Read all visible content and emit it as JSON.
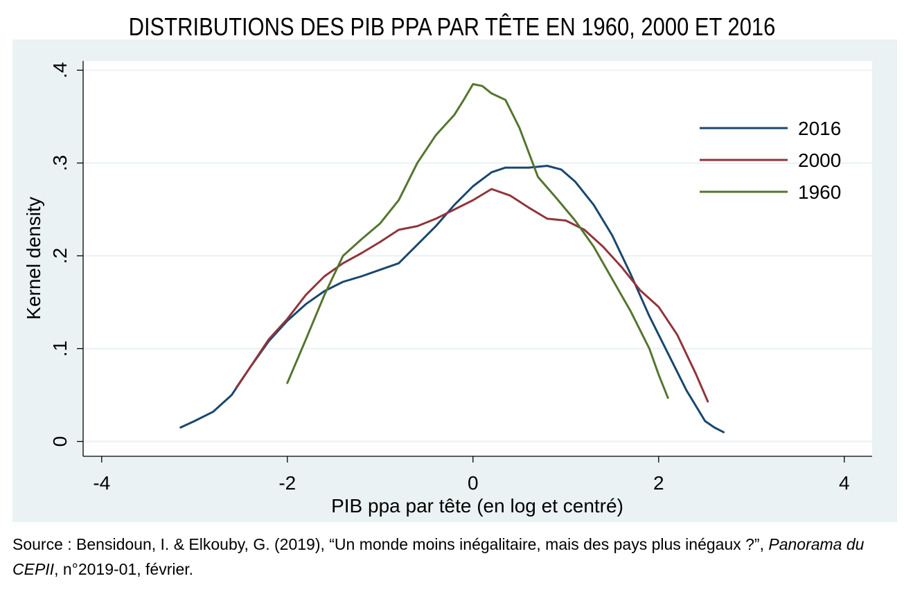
{
  "chart_data": {
    "type": "line",
    "title": "DISTRIBUTIONS DES PIB PPA PAR TÊTE EN 1960, 2000 ET 2016",
    "xlabel": "PIB ppa par tête (en log et centré)",
    "ylabel": "Kernel density",
    "xlim": [
      -4.2,
      4.3
    ],
    "ylim": [
      -0.016,
      0.41
    ],
    "xticks": [
      {
        "value": -4,
        "label": "-4"
      },
      {
        "value": -2,
        "label": "-2"
      },
      {
        "value": 0,
        "label": "0"
      },
      {
        "value": 2,
        "label": "2"
      },
      {
        "value": 4,
        "label": "4"
      }
    ],
    "yticks": [
      {
        "value": 0,
        "label": "0"
      },
      {
        "value": 0.1,
        "label": ".1"
      },
      {
        "value": 0.2,
        "label": ".2"
      },
      {
        "value": 0.3,
        "label": ".3"
      },
      {
        "value": 0.4,
        "label": ".4"
      }
    ],
    "grid": "horizontal",
    "legend_position": "top-right",
    "colors": {
      "outer_background": "#eaf2f3",
      "plot_background": "#ffffff",
      "gridline": "#eaf2f3"
    },
    "series": [
      {
        "name": "2016",
        "color": "#1a476f",
        "points": [
          [
            -3.15,
            0.015
          ],
          [
            -3.0,
            0.022
          ],
          [
            -2.8,
            0.032
          ],
          [
            -2.6,
            0.05
          ],
          [
            -2.4,
            0.08
          ],
          [
            -2.2,
            0.108
          ],
          [
            -2.0,
            0.13
          ],
          [
            -1.8,
            0.148
          ],
          [
            -1.6,
            0.162
          ],
          [
            -1.4,
            0.172
          ],
          [
            -1.2,
            0.178
          ],
          [
            -1.0,
            0.185
          ],
          [
            -0.8,
            0.192
          ],
          [
            -0.6,
            0.212
          ],
          [
            -0.4,
            0.232
          ],
          [
            -0.2,
            0.255
          ],
          [
            0.0,
            0.275
          ],
          [
            0.2,
            0.29
          ],
          [
            0.35,
            0.295
          ],
          [
            0.6,
            0.295
          ],
          [
            0.8,
            0.297
          ],
          [
            0.95,
            0.293
          ],
          [
            1.1,
            0.28
          ],
          [
            1.3,
            0.255
          ],
          [
            1.5,
            0.222
          ],
          [
            1.7,
            0.18
          ],
          [
            1.9,
            0.135
          ],
          [
            2.1,
            0.095
          ],
          [
            2.3,
            0.055
          ],
          [
            2.5,
            0.022
          ],
          [
            2.6,
            0.015
          ],
          [
            2.7,
            0.01
          ]
        ]
      },
      {
        "name": "2000",
        "color": "#90353b",
        "points": [
          [
            -2.55,
            0.058
          ],
          [
            -2.4,
            0.08
          ],
          [
            -2.2,
            0.11
          ],
          [
            -2.0,
            0.132
          ],
          [
            -1.8,
            0.158
          ],
          [
            -1.6,
            0.178
          ],
          [
            -1.4,
            0.192
          ],
          [
            -1.2,
            0.203
          ],
          [
            -1.0,
            0.215
          ],
          [
            -0.8,
            0.228
          ],
          [
            -0.6,
            0.232
          ],
          [
            -0.4,
            0.24
          ],
          [
            -0.2,
            0.25
          ],
          [
            0.0,
            0.26
          ],
          [
            0.2,
            0.272
          ],
          [
            0.4,
            0.265
          ],
          [
            0.6,
            0.252
          ],
          [
            0.8,
            0.24
          ],
          [
            1.0,
            0.238
          ],
          [
            1.2,
            0.228
          ],
          [
            1.4,
            0.21
          ],
          [
            1.6,
            0.188
          ],
          [
            1.8,
            0.163
          ],
          [
            2.0,
            0.145
          ],
          [
            2.2,
            0.115
          ],
          [
            2.4,
            0.073
          ],
          [
            2.53,
            0.043
          ]
        ]
      },
      {
        "name": "1960",
        "color": "#55752f",
        "points": [
          [
            -2.0,
            0.063
          ],
          [
            -1.8,
            0.11
          ],
          [
            -1.6,
            0.158
          ],
          [
            -1.4,
            0.2
          ],
          [
            -1.2,
            0.218
          ],
          [
            -1.0,
            0.235
          ],
          [
            -0.8,
            0.26
          ],
          [
            -0.6,
            0.3
          ],
          [
            -0.4,
            0.33
          ],
          [
            -0.2,
            0.352
          ],
          [
            -0.1,
            0.368
          ],
          [
            0.0,
            0.385
          ],
          [
            0.1,
            0.383
          ],
          [
            0.2,
            0.375
          ],
          [
            0.35,
            0.368
          ],
          [
            0.5,
            0.338
          ],
          [
            0.7,
            0.285
          ],
          [
            0.9,
            0.262
          ],
          [
            1.1,
            0.238
          ],
          [
            1.3,
            0.21
          ],
          [
            1.5,
            0.175
          ],
          [
            1.7,
            0.14
          ],
          [
            1.9,
            0.1
          ],
          [
            2.0,
            0.072
          ],
          [
            2.1,
            0.047
          ]
        ]
      }
    ]
  },
  "source": {
    "prefix": "Source : Bensidoun, I. & Elkouby, G. (2019), “Un monde moins inégalitaire, mais des pays plus inégaux ?”, ",
    "journal": "Panorama du CEPII",
    "suffix": ", n°2019-01, février."
  }
}
